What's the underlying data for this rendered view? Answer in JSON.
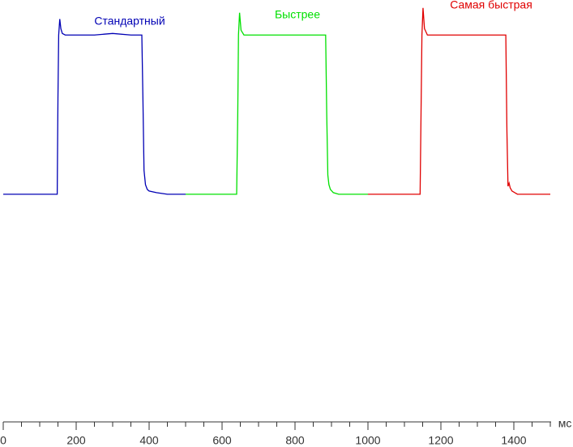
{
  "chart_data": {
    "type": "line",
    "xlabel": "мс",
    "xlim": [
      0,
      1500
    ],
    "ylim": [
      -143,
      122
    ],
    "xticks": [
      0,
      200,
      400,
      600,
      800,
      1000,
      1200,
      1400
    ],
    "xminorticks": [
      0,
      50,
      100,
      150,
      200,
      250,
      300,
      350,
      400,
      450,
      500,
      550,
      600,
      650,
      700,
      750,
      800,
      850,
      900,
      950,
      1000,
      1050,
      1100,
      1150,
      1200,
      1250,
      1300,
      1350,
      1400,
      1450,
      1500
    ],
    "series": [
      {
        "name": "Стандартный",
        "color": "#0000b4",
        "x": [
          0,
          148,
          150,
          152,
          155,
          158,
          162,
          170,
          200,
          250,
          300,
          350,
          380,
          383,
          386,
          390,
          395,
          400,
          420,
          450,
          500
        ],
        "values": [
          0,
          0,
          60,
          100,
          110,
          104,
          101,
          100,
          100,
          100,
          101,
          100,
          100,
          60,
          15,
          6,
          3,
          2,
          1,
          0,
          0
        ]
      },
      {
        "name": "Быстрее",
        "color": "#00e000",
        "x": [
          500,
          640,
          643,
          645,
          648,
          652,
          660,
          700,
          750,
          800,
          850,
          884,
          887,
          890,
          893,
          897,
          905,
          920,
          950,
          1000
        ],
        "values": [
          0,
          0,
          50,
          100,
          114,
          103,
          100,
          100,
          100,
          100,
          100,
          100,
          50,
          12,
          6,
          3,
          1,
          0,
          0,
          0
        ]
      },
      {
        "name": "Самая быстрая",
        "color": "#e00000",
        "x": [
          1000,
          1143,
          1146,
          1148,
          1151,
          1155,
          1163,
          1200,
          1250,
          1300,
          1350,
          1378,
          1381,
          1384,
          1387,
          1390,
          1395,
          1410,
          1450,
          1500
        ],
        "values": [
          0,
          0,
          60,
          100,
          117,
          104,
          100,
          100,
          100,
          100,
          100,
          100,
          40,
          5,
          7,
          4,
          2,
          0,
          0,
          0
        ]
      }
    ]
  }
}
